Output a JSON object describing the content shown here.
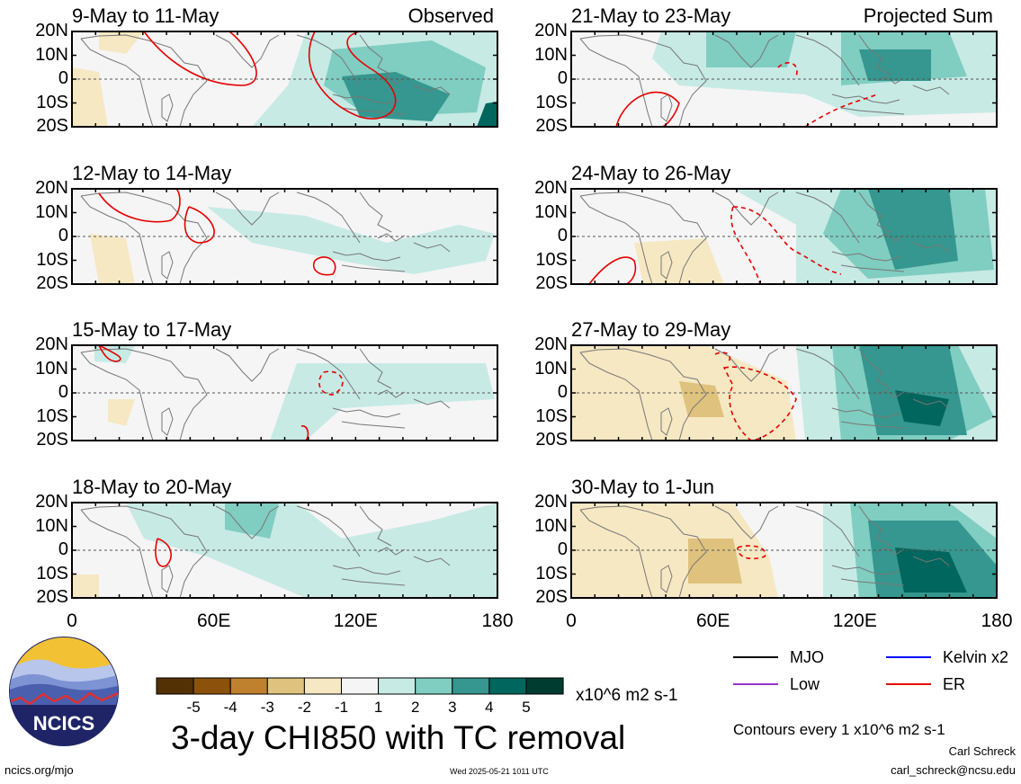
{
  "panels": [
    {
      "title": "9-May to 11-May",
      "tag": "Observed"
    },
    {
      "title": "21-May to 23-May",
      "tag": "Projected Sum"
    },
    {
      "title": "12-May to 14-May",
      "tag": ""
    },
    {
      "title": "24-May to 26-May",
      "tag": ""
    },
    {
      "title": "15-May to 17-May",
      "tag": ""
    },
    {
      "title": "27-May to 29-May",
      "tag": ""
    },
    {
      "title": "18-May to 20-May",
      "tag": ""
    },
    {
      "title": "30-May to 1-Jun",
      "tag": ""
    }
  ],
  "lat_labels": [
    "20N",
    "10N",
    "0",
    "10S",
    "20S"
  ],
  "lon_labels": [
    "0",
    "60E",
    "120E",
    "180"
  ],
  "colorbar": {
    "ticks": [
      "-5",
      "-4",
      "-3",
      "-2",
      "-1",
      "1",
      "2",
      "3",
      "4",
      "5"
    ],
    "colors": [
      "#543005",
      "#8c510a",
      "#bf812d",
      "#dfc27d",
      "#f6e8c3",
      "#f5f5f5",
      "#c7eae5",
      "#80cdc1",
      "#35978f",
      "#01665e",
      "#003c30"
    ],
    "units": "x10^6 m2 s-1"
  },
  "legend": {
    "items": [
      {
        "label": "MJO",
        "color": "#000000"
      },
      {
        "label": "Kelvin x2",
        "color": "#0000ff"
      },
      {
        "label": "Low",
        "color": "#9933cc"
      },
      {
        "label": "ER",
        "color": "#e60000"
      }
    ],
    "contours_note": "Contours every 1 x10^6 m2 s-1"
  },
  "main_title": "3-day CHI850 with TC removal",
  "logo_text": "NCICS",
  "footer": {
    "url": "ncics.org/mjo",
    "timestamp": "Wed 2025-05-21 1011 UTC",
    "author": "Carl Schreck",
    "email": "carl_schreck@ncsu.edu"
  }
}
